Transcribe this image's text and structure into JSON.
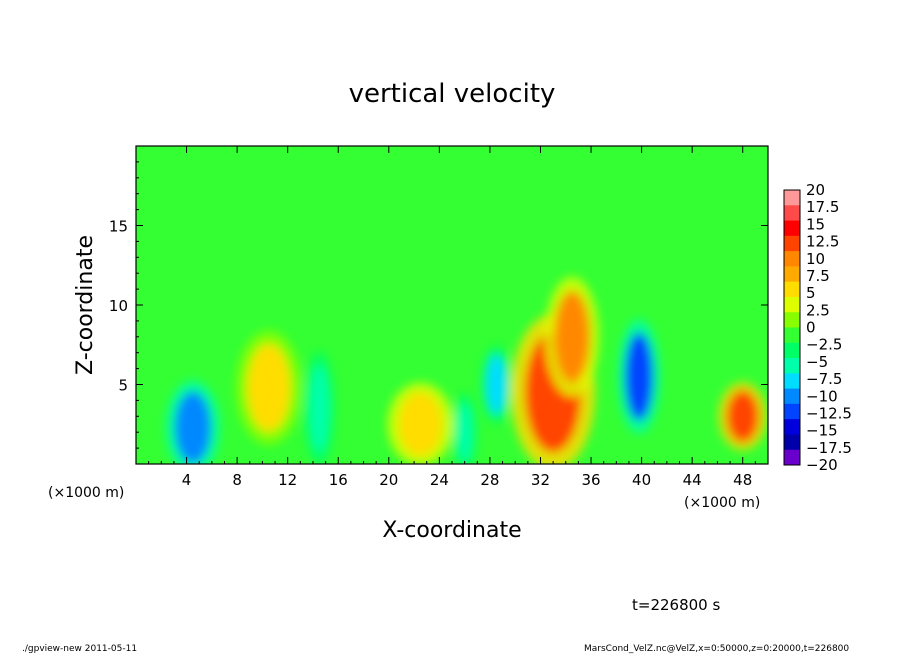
{
  "chart_data": {
    "type": "heatmap",
    "title": "vertical velocity",
    "xlabel": "X-coordinate",
    "ylabel": "Z-coordinate",
    "x_unit": "(×1000 m)",
    "x_unit_right": "(×1000 m)",
    "xlim": [
      0,
      50
    ],
    "ylim": [
      0,
      20
    ],
    "x_ticks": [
      4,
      8,
      12,
      16,
      20,
      24,
      28,
      32,
      36,
      40,
      44,
      48
    ],
    "y_ticks": [
      5,
      10,
      15
    ],
    "colorbar": {
      "min": -20,
      "max": 20,
      "labels": [
        "20",
        "17.5",
        "15",
        "12.5",
        "10",
        "7.5",
        "5",
        "2.5",
        "0",
        "−2.5",
        "−5",
        "−7.5",
        "−10",
        "−12.5",
        "−15",
        "−17.5",
        "−20"
      ],
      "colors": [
        "#ff9999",
        "#ff4a4a",
        "#ff0000",
        "#ff4400",
        "#ff8800",
        "#ffaa00",
        "#ffdd00",
        "#ddff00",
        "#88ff00",
        "#33ff33",
        "#00ff66",
        "#00ffaa",
        "#00ddff",
        "#0088ff",
        "#0044ff",
        "#0000dd",
        "#0000aa",
        "#6a00cc"
      ]
    },
    "background_value": 0.5,
    "features": [
      {
        "x": 4.5,
        "z": 2.3,
        "value": -11
      },
      {
        "x": 10.5,
        "z": 4.8,
        "value": 5
      },
      {
        "x": 14.5,
        "z": 3.5,
        "value": -6
      },
      {
        "x": 22.5,
        "z": 2.5,
        "value": 7
      },
      {
        "x": 26,
        "z": 2,
        "value": -6
      },
      {
        "x": 28.5,
        "z": 5,
        "value": -9
      },
      {
        "x": 33,
        "z": 4.5,
        "value": 12
      },
      {
        "x": 34.5,
        "z": 8,
        "value": 10
      },
      {
        "x": 39.8,
        "z": 5.5,
        "value": -12
      },
      {
        "x": 48,
        "z": 3,
        "value": 12
      }
    ]
  },
  "time_label": "t=226800 s",
  "footer_left": "./gpview-new  2011-05-11",
  "footer_right": "MarsCond_VelZ.nc@VelZ,x=0:50000,z=0:20000,t=226800"
}
